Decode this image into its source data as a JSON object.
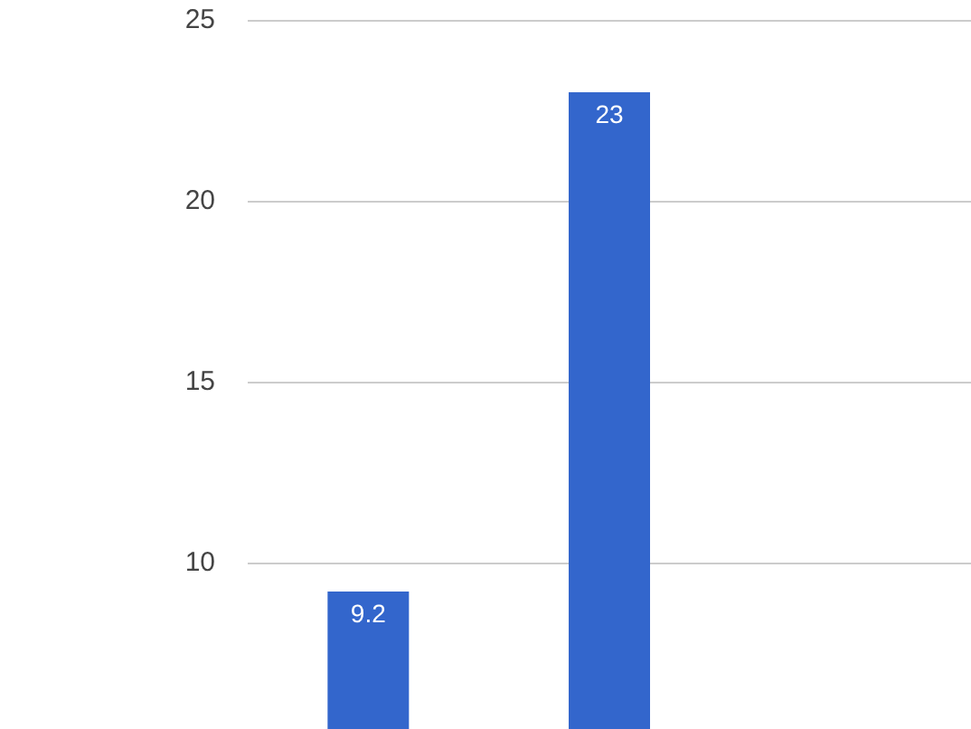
{
  "chart_data": {
    "type": "bar",
    "categories": [
      null,
      null,
      null
    ],
    "values": [
      9.2,
      23,
      null
    ],
    "color": "#3366cc",
    "ylim": [
      5.4,
      25
    ],
    "yticks": [
      10,
      15,
      20,
      25
    ],
    "grid": "y",
    "data_labels": true,
    "tick_labels": "y"
  }
}
